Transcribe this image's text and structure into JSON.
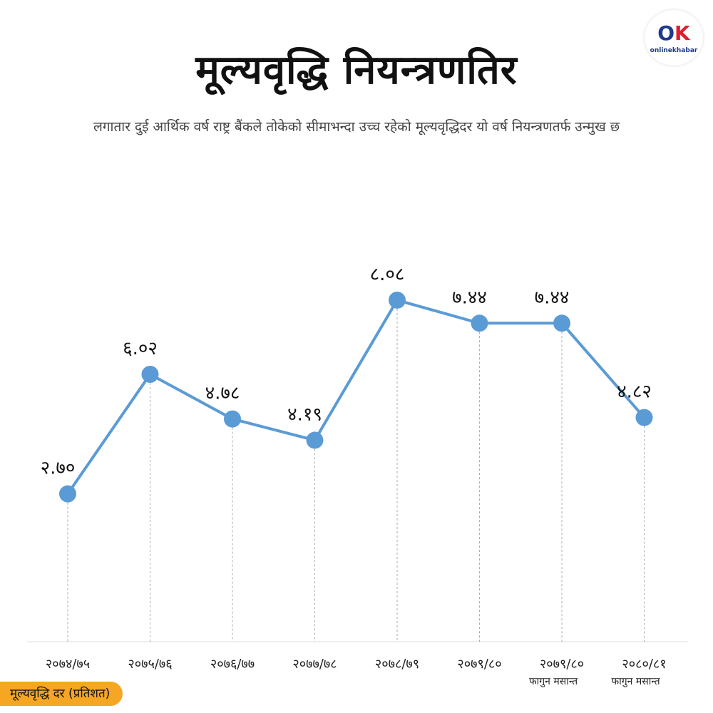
{
  "header": {
    "title": "मूल्यवृद्धि नियन्त्रणतिर",
    "subtitle": "लगातार दुई आर्थिक वर्ष राष्ट्र बैंकले तोकेको सीमाभन्दा उच्च रहेको मूल्यवृद्धिदर यो वर्ष नियन्त्रणतर्फ उन्मुख छ"
  },
  "logo": {
    "mark_o": "O",
    "mark_k": "K",
    "brand": "onlinekhabar"
  },
  "footer": {
    "label": "मूल्यवृद्धि दर (प्रतिशत)"
  },
  "colors": {
    "line": "#5b9bd5",
    "accent": "#f5a623",
    "grid": "#aaaaaa"
  },
  "chart_data": {
    "type": "line",
    "categories": [
      "२०७४/७५",
      "२०७५/७६",
      "२०७६/७७",
      "२०७७/७८",
      "२०७८/७९",
      "२०७९/८०",
      "२०७९/८०",
      "२०८०/८१"
    ],
    "category_sublabels": [
      "",
      "",
      "",
      "",
      "",
      "",
      "फागुन मसान्त",
      "फागुन मसान्त"
    ],
    "values": [
      2.7,
      6.02,
      4.78,
      4.19,
      8.08,
      7.44,
      7.44,
      4.82
    ],
    "value_labels": [
      "२.७०",
      "६.०२",
      "४.७८",
      "४.१९",
      "८.०८",
      "७.४४",
      "७.४४",
      "४.८२"
    ],
    "ylabel": "मूल्यवृद्धि दर (प्रतिशत)",
    "xlabel": "",
    "grid": "vertical dashed drop lines",
    "legend": "none"
  }
}
